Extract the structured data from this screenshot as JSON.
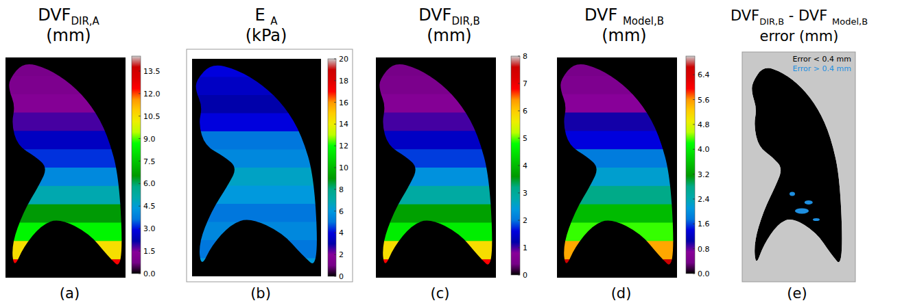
{
  "chart_data": [
    {
      "type": "heatmap",
      "title": [
        "DVF",
        "DIR,A"
      ],
      "subtitle": "(mm)",
      "caption": "(a)",
      "values": [
        0.8,
        1.0,
        1.3,
        1.8,
        2.5,
        3.2,
        4.0,
        5.0,
        6.5,
        8.5,
        10.5,
        12.5
      ],
      "colorbar": {
        "range": [
          0,
          14.5
        ],
        "ticks": [
          {
            "value": 0,
            "label": "0.0"
          },
          1.5,
          {
            "value": 3,
            "label": "3.0"
          },
          4.5,
          {
            "value": 6,
            "label": "6.0"
          },
          7.5,
          {
            "value": 9,
            "label": "9.0"
          },
          10.5,
          {
            "value": 12,
            "label": "12.0"
          },
          13.5
        ]
      }
    },
    {
      "type": "heatmap",
      "title": [
        "E ",
        "A"
      ],
      "subtitle": "(kPa)",
      "caption": "(b)",
      "values": [
        4.0,
        3.5,
        3.0,
        4.0,
        5.0,
        5.5,
        6.5,
        6.0,
        5.0,
        5.5,
        5.0,
        6.0
      ],
      "colorbar": {
        "range": [
          0,
          20
        ],
        "ticks": [
          0,
          2,
          4,
          6,
          8,
          10,
          12,
          14,
          16,
          18,
          20
        ]
      }
    },
    {
      "type": "heatmap",
      "title": [
        "DVF",
        "DIR,B"
      ],
      "subtitle": "(mm)",
      "caption": "(c)",
      "values": [
        0.4,
        0.5,
        0.7,
        1.0,
        1.4,
        1.8,
        2.3,
        2.9,
        3.7,
        4.6,
        5.8,
        6.8
      ],
      "colorbar": {
        "range": [
          0,
          8
        ],
        "ticks": [
          0,
          1,
          2,
          3,
          4,
          5,
          6,
          7,
          8
        ]
      }
    },
    {
      "type": "heatmap",
      "title": [
        "DVF ",
        "Model,B"
      ],
      "subtitle": "(mm)",
      "caption": "(d)",
      "values": [
        0.4,
        0.5,
        0.7,
        1.0,
        1.4,
        1.8,
        2.2,
        2.8,
        3.5,
        4.3,
        5.5,
        6.6
      ],
      "colorbar": {
        "range": [
          0,
          7.0
        ],
        "ticks": [
          {
            "value": 0,
            "label": "0.0"
          },
          0.8,
          1.6,
          2.4,
          3.2,
          {
            "value": 4,
            "label": "4.0"
          },
          4.8,
          5.6,
          6.4
        ]
      }
    },
    {
      "type": "heatmap",
      "title": [
        "DVF",
        "DIR,B",
        " - DVF ",
        "Model,B"
      ],
      "subtitle": "error (mm)",
      "caption": "(e)",
      "legend": "upper right",
      "series": [
        {
          "name": "Error < 0.4 mm",
          "color": "#000000"
        },
        {
          "name": "Error > 0.4 mm",
          "color": "#1e8fe0"
        }
      ]
    }
  ]
}
